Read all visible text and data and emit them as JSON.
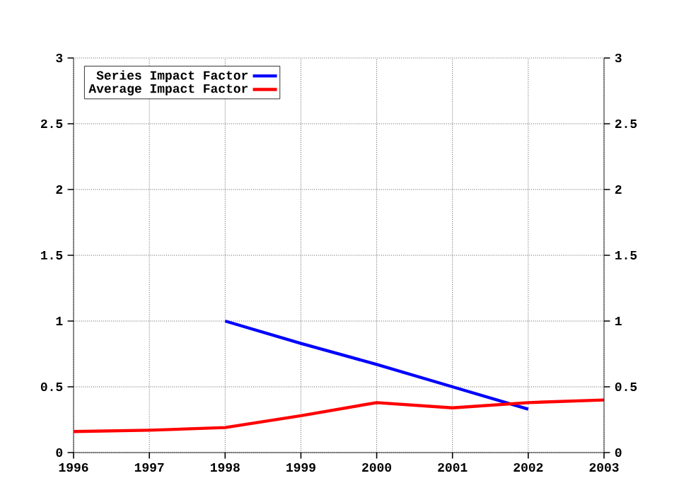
{
  "chart_data": {
    "type": "line",
    "x": [
      1996,
      1997,
      1998,
      1999,
      2000,
      2001,
      2002,
      2003
    ],
    "series": [
      {
        "name": "Series Impact Factor",
        "color": "#0000ff",
        "values": [
          null,
          null,
          1.0,
          0.83,
          0.67,
          0.5,
          0.33,
          null
        ]
      },
      {
        "name": "Average Impact Factor",
        "color": "#ff0000",
        "values": [
          0.16,
          0.17,
          0.19,
          0.28,
          0.38,
          0.34,
          0.38,
          0.4
        ]
      }
    ],
    "xlim": [
      1996,
      2003
    ],
    "xticks": [
      1996,
      1997,
      1998,
      1999,
      2000,
      2001,
      2002,
      2003
    ],
    "ylim": [
      0,
      3
    ],
    "yticks": [
      0,
      0.5,
      1,
      1.5,
      2,
      2.5,
      3
    ],
    "y2lim": [
      0,
      3
    ],
    "y2ticks": [
      0,
      0.5,
      1,
      1.5,
      2,
      2.5,
      3
    ],
    "grid": true,
    "legend": "top left",
    "marker": "none",
    "line_style": "solid"
  }
}
